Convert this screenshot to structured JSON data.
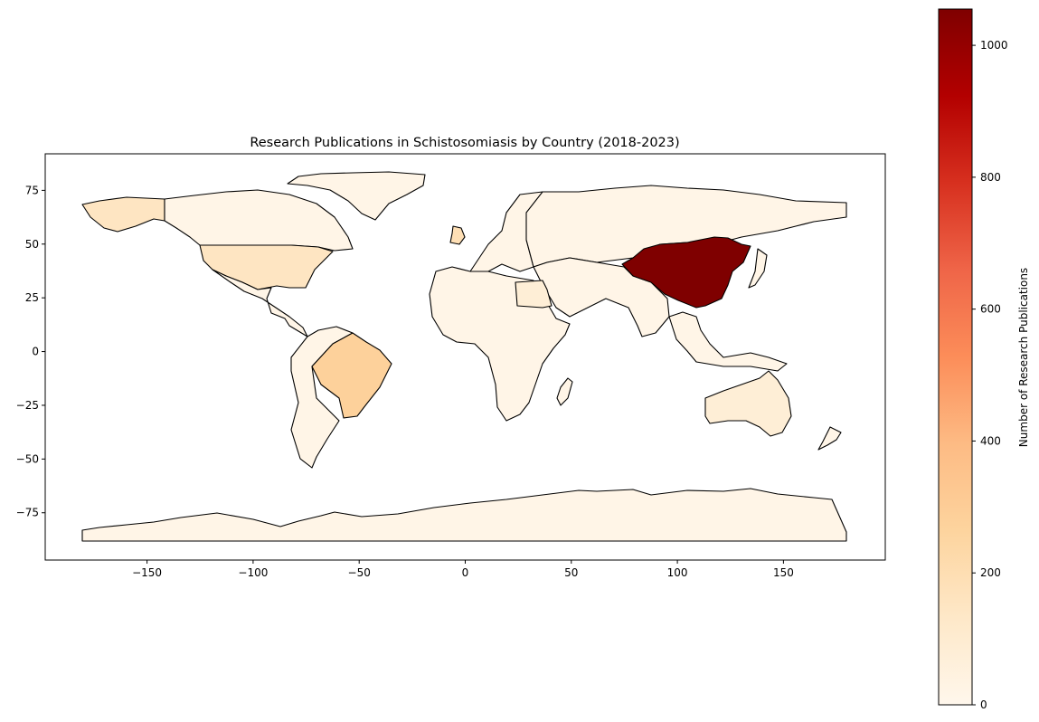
{
  "chart_data": {
    "type": "choropleth",
    "title": "Research Publications in Schistosomiasis by Country (2018-2023)",
    "xlabel": "",
    "ylabel": "",
    "xlim": [
      -198,
      198
    ],
    "ylim": [
      -97,
      92
    ],
    "x_ticks": [
      -150,
      -100,
      -50,
      0,
      50,
      100,
      150
    ],
    "y_ticks": [
      -75,
      -50,
      -25,
      0,
      25,
      50,
      75
    ],
    "x_tick_labels": [
      "−150",
      "−100",
      "−50",
      "0",
      "50",
      "100",
      "150"
    ],
    "y_tick_labels": [
      "−75",
      "−50",
      "−25",
      "0",
      "25",
      "50",
      "75"
    ],
    "grid": false,
    "colormap": "OrRd",
    "colorbar": {
      "label": "Number of Research Publications",
      "vmin": 0,
      "vmax": 1055,
      "ticks": [
        0,
        200,
        400,
        600,
        800,
        1000
      ],
      "tick_labels": [
        "0",
        "200",
        "400",
        "600",
        "800",
        "1000"
      ],
      "stops": [
        "#fff7ec",
        "#fee8c8",
        "#fdd49e",
        "#fdbb84",
        "#fc8d59",
        "#ef6548",
        "#d7301f",
        "#b30000",
        "#7f0000"
      ]
    },
    "regions": [
      {
        "name": "China",
        "value": 1055
      },
      {
        "name": "Brazil",
        "value": 280
      },
      {
        "name": "United Kingdom",
        "value": 190
      },
      {
        "name": "United States of America",
        "value": 150
      },
      {
        "name": "Australia",
        "value": 80
      },
      {
        "name": "Alaska (USA)",
        "value": 150
      },
      {
        "name": "Egypt",
        "value": 80
      },
      {
        "name": "Other countries",
        "value": 20
      }
    ]
  }
}
